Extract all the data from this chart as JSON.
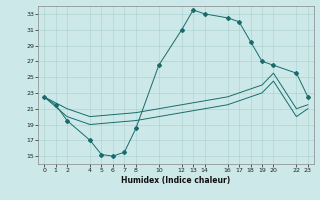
{
  "xlabel": "Humidex (Indice chaleur)",
  "background_color": "#cce8e8",
  "grid_color": "#aacfcf",
  "line_color": "#1a6b6b",
  "xlim": [
    -0.5,
    23.5
  ],
  "ylim": [
    14,
    34
  ],
  "xticks": [
    0,
    1,
    2,
    4,
    5,
    6,
    7,
    8,
    10,
    12,
    13,
    14,
    16,
    17,
    18,
    19,
    20,
    22,
    23
  ],
  "yticks": [
    15,
    17,
    19,
    21,
    23,
    25,
    27,
    29,
    31,
    33
  ],
  "curve1_x": [
    0,
    1,
    2,
    4,
    5,
    6,
    7,
    8,
    10,
    12,
    13,
    14,
    16,
    17,
    18,
    19,
    20,
    22,
    23
  ],
  "curve1_y": [
    22.5,
    21.5,
    19.5,
    17.0,
    15.2,
    15.0,
    15.5,
    18.5,
    26.5,
    31.0,
    33.5,
    33.0,
    32.5,
    32.0,
    29.5,
    27.0,
    26.5,
    25.5,
    22.5
  ],
  "curve2_x": [
    0,
    2,
    4,
    8,
    10,
    12,
    14,
    16,
    19,
    20,
    22,
    23
  ],
  "curve2_y": [
    22.5,
    21.0,
    20.0,
    20.5,
    21.0,
    21.5,
    22.0,
    22.5,
    24.0,
    25.5,
    21.0,
    21.5
  ],
  "curve3_x": [
    0,
    2,
    4,
    8,
    10,
    12,
    14,
    16,
    19,
    20,
    22,
    23
  ],
  "curve3_y": [
    22.5,
    20.0,
    19.0,
    19.5,
    20.0,
    20.5,
    21.0,
    21.5,
    23.0,
    24.5,
    20.0,
    21.0
  ],
  "figsize": [
    3.2,
    2.0
  ],
  "dpi": 100
}
